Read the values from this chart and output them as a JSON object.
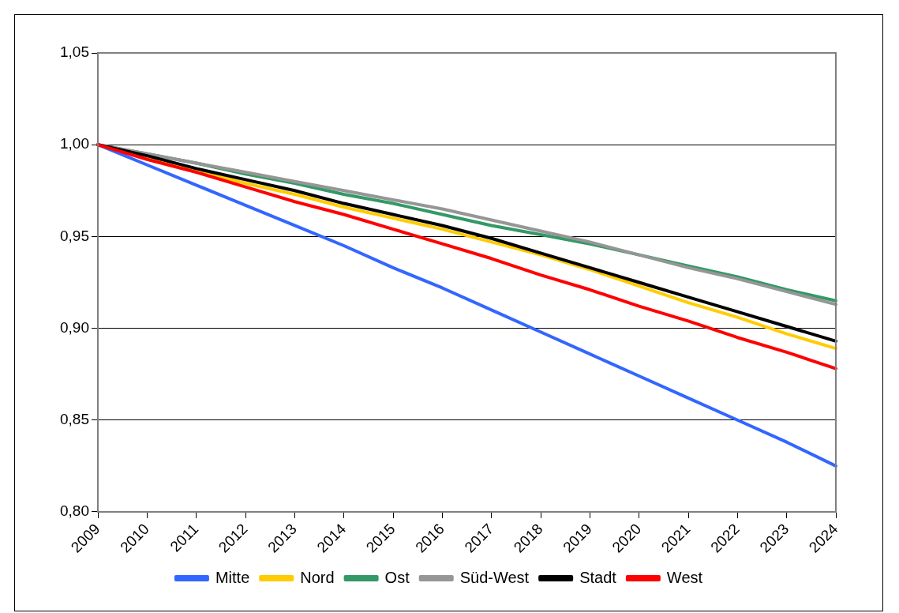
{
  "chart_data": {
    "type": "line",
    "categories": [
      "2009",
      "2010",
      "2011",
      "2012",
      "2013",
      "2014",
      "2015",
      "2016",
      "2017",
      "2018",
      "2019",
      "2020",
      "2021",
      "2022",
      "2023",
      "2024"
    ],
    "series": [
      {
        "name": "Mitte",
        "color": "#3366ff",
        "values": [
          1,
          0.989,
          0.978,
          0.967,
          0.956,
          0.945,
          0.933,
          0.922,
          0.91,
          0.898,
          0.886,
          0.874,
          0.862,
          0.85,
          0.838,
          0.825
        ]
      },
      {
        "name": "Nord",
        "color": "#ffcc00",
        "values": [
          1,
          0.993,
          0.986,
          0.979,
          0.973,
          0.966,
          0.96,
          0.954,
          0.947,
          0.94,
          0.932,
          0.923,
          0.914,
          0.906,
          0.897,
          0.889
        ]
      },
      {
        "name": "Ost",
        "color": "#339966",
        "values": [
          1,
          0.995,
          0.99,
          0.984,
          0.979,
          0.973,
          0.968,
          0.962,
          0.956,
          0.951,
          0.946,
          0.94,
          0.934,
          0.928,
          0.921,
          0.915
        ]
      },
      {
        "name": "Süd-West",
        "color": "#969696",
        "values": [
          1,
          0.995,
          0.99,
          0.985,
          0.98,
          0.975,
          0.97,
          0.965,
          0.959,
          0.953,
          0.947,
          0.94,
          0.933,
          0.927,
          0.92,
          0.913
        ]
      },
      {
        "name": "Stadt",
        "color": "#000000",
        "values": [
          1,
          0.994,
          0.987,
          0.981,
          0.975,
          0.968,
          0.962,
          0.956,
          0.949,
          0.941,
          0.933,
          0.925,
          0.917,
          0.909,
          0.901,
          0.893
        ]
      },
      {
        "name": "West",
        "color": "#ff0000",
        "values": [
          1,
          0.992,
          0.985,
          0.977,
          0.969,
          0.962,
          0.954,
          0.946,
          0.938,
          0.929,
          0.921,
          0.912,
          0.904,
          0.895,
          0.887,
          0.878
        ]
      }
    ],
    "ylim": [
      0.8,
      1.05
    ],
    "yticks": [
      {
        "value": 0.8,
        "label": "0,80"
      },
      {
        "value": 0.85,
        "label": "0,85"
      },
      {
        "value": 0.9,
        "label": "0,90"
      },
      {
        "value": 0.95,
        "label": "0,95"
      },
      {
        "value": 1,
        "label": "1,00"
      },
      {
        "value": 1.05,
        "label": "1,05"
      }
    ],
    "grid": "y",
    "legend": "bottom",
    "marker": "none",
    "line_style": "solid"
  }
}
